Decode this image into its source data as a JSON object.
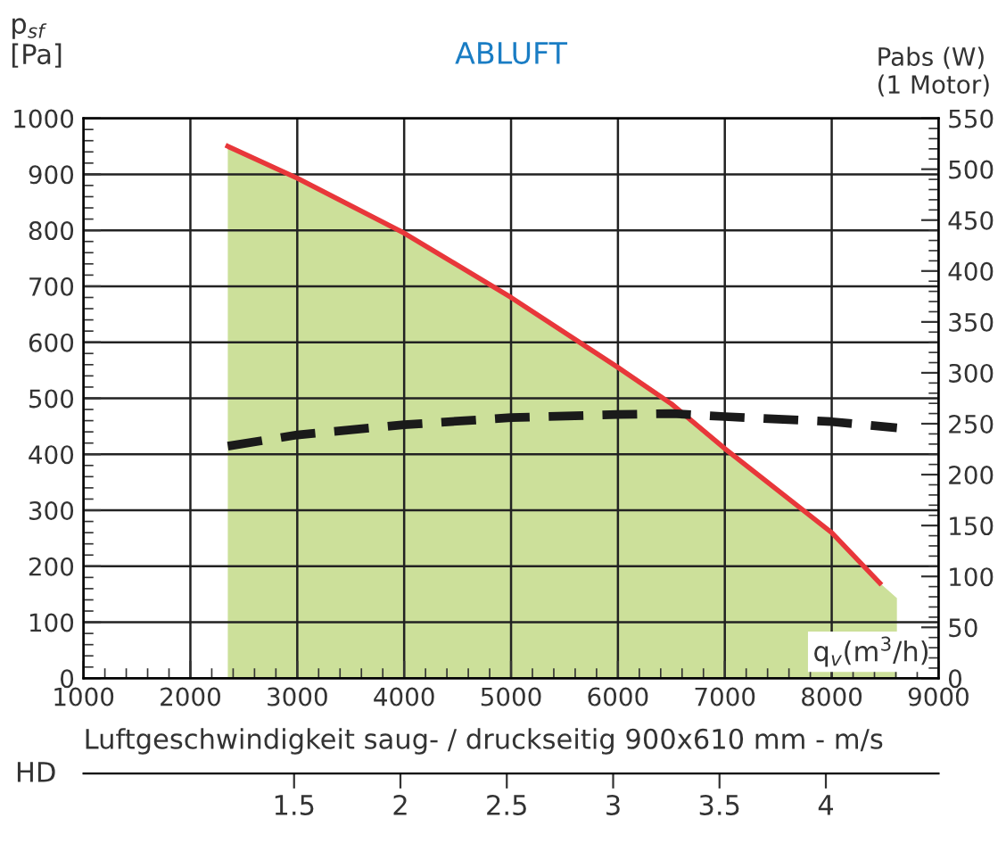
{
  "chart_data": {
    "type": "line",
    "title": "ABLUFT",
    "xlabel": "q$_{v}$(m$^{3}$/h)",
    "ylabel": "p$_{sf}$\n[Pa]",
    "y2label": "Pabs (W)\n(1 Motor)",
    "x2label": "Luftgeschwindigkeit saug- / druckseitig 900x610 mm - m/s",
    "annotations": [
      "HD"
    ],
    "series": [
      {
        "type": "area",
        "color": "#cce09a",
        "x": [
          2350,
          3000,
          4000,
          5000,
          6000,
          6500,
          7000,
          8000,
          8450,
          8610
        ],
        "values": [
          950,
          893,
          795,
          680,
          555,
          490,
          410,
          260,
          170,
          143
        ]
      },
      {
        "color": "#e8373a",
        "line_style": "solid",
        "x": [
          2350,
          3000,
          4000,
          5000,
          6000,
          6500,
          7000,
          8000,
          8450
        ],
        "values": [
          950,
          893,
          795,
          680,
          555,
          490,
          410,
          260,
          170
        ]
      },
      {
        "axis": "y2",
        "color": "#1a1a1a",
        "line_style": "dashed",
        "x": [
          2350,
          3000,
          4000,
          5000,
          6000,
          6500,
          7000,
          8000,
          8610
        ],
        "values": [
          228,
          239,
          249,
          256,
          259,
          260,
          257,
          252,
          246
        ]
      }
    ],
    "xlim": [
      1000,
      9000
    ],
    "xticks": [
      1000,
      2000,
      3000,
      4000,
      5000,
      6000,
      7000,
      8000,
      9000
    ],
    "ylim": [
      0,
      1000
    ],
    "yticks": [
      0,
      100,
      200,
      300,
      400,
      500,
      600,
      700,
      800,
      900,
      1000
    ],
    "y2lim": [
      0,
      550
    ],
    "y2ticks": [
      0,
      50,
      100,
      150,
      200,
      250,
      300,
      350,
      400,
      450,
      500,
      550
    ],
    "x2lim": [
      0.51,
      4.53
    ],
    "x2ticks": [
      1.5,
      2,
      2.5,
      3,
      3.5,
      4
    ],
    "grid": true,
    "legend": false
  }
}
